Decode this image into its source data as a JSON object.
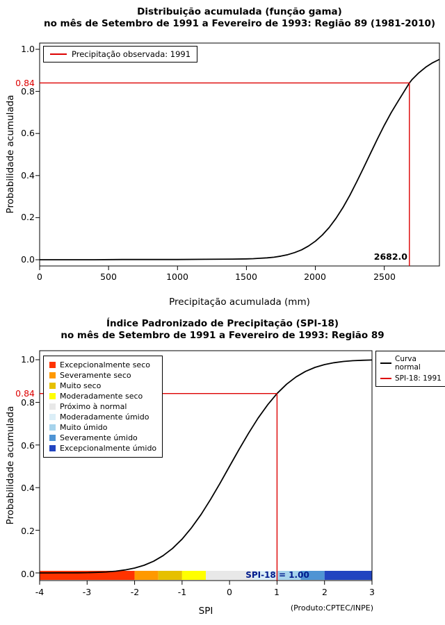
{
  "page": {
    "background": "#ffffff"
  },
  "chart_data": [
    {
      "type": "line",
      "title": "Distribuição acumulada (função gama)",
      "subtitle": "no mês de Setembro de 1991 a Fevereiro de 1993: Região 89 (1981-2010)",
      "xlabel": "Precipitação acumulada (mm)",
      "ylabel": "Probabilidade acumulada",
      "xlim": [
        0,
        2900
      ],
      "ylim": [
        0,
        1
      ],
      "grid": false,
      "legend_position": "top-left",
      "xticks": [
        0,
        500,
        1000,
        1500,
        2000,
        2500
      ],
      "xtick_labels": [
        "0",
        "500",
        "1000",
        "1500",
        "2000",
        "2500"
      ],
      "yticks": [
        0,
        0.2,
        0.4,
        0.6,
        0.8,
        1
      ],
      "ytick_labels": [
        "0.0",
        "0.2",
        "0.4",
        "0.6",
        "0.8",
        "1.0"
      ],
      "legend": {
        "entries": [
          {
            "label": "Precipitação observada: 1991",
            "color": "#dd0000",
            "type": "line"
          }
        ]
      },
      "series": [
        {
          "name": "Distribuição gama acumulada",
          "color": "#000000",
          "x": [
            0,
            200,
            400,
            600,
            800,
            1000,
            1200,
            1400,
            1500,
            1550,
            1600,
            1650,
            1700,
            1750,
            1800,
            1850,
            1900,
            1950,
            2000,
            2050,
            2100,
            2150,
            2200,
            2250,
            2300,
            2350,
            2400,
            2450,
            2500,
            2550,
            2600,
            2650,
            2682,
            2700,
            2750,
            2800,
            2850,
            2900
          ],
          "y": [
            0,
            0,
            0,
            0.001,
            0.001,
            0.001,
            0.002,
            0.003,
            0.004,
            0.005,
            0.007,
            0.009,
            0.012,
            0.017,
            0.024,
            0.034,
            0.047,
            0.065,
            0.088,
            0.117,
            0.153,
            0.197,
            0.248,
            0.306,
            0.37,
            0.437,
            0.506,
            0.574,
            0.639,
            0.699,
            0.753,
            0.806,
            0.84,
            0.855,
            0.888,
            0.915,
            0.936,
            0.952
          ]
        }
      ],
      "marker": {
        "x": 2682,
        "y": 0.84,
        "color": "#dd0000",
        "x_label": "2682.0",
        "y_label": "0.84"
      }
    },
    {
      "type": "line",
      "title": "Índice Padronizado de Precipitação (SPI-18)",
      "subtitle": "no mês de Setembro de 1991 a Fevereiro de 1993: Região 89",
      "xlabel": "SPI",
      "ylabel": "Probabilidade acumulada",
      "xlim": [
        -4,
        3
      ],
      "ylim": [
        0,
        1
      ],
      "grid": false,
      "xticks": [
        -4,
        -3,
        -2,
        -1,
        0,
        1,
        2,
        3
      ],
      "xtick_labels": [
        "-4",
        "-3",
        "-2",
        "-1",
        "0",
        "1",
        "2",
        "3"
      ],
      "yticks": [
        0,
        0.2,
        0.4,
        0.6,
        0.8,
        1
      ],
      "ytick_labels": [
        "0.0",
        "0.2",
        "0.4",
        "0.6",
        "0.8",
        "1.0"
      ],
      "legend_right": {
        "entries": [
          {
            "label": "Curva\nnormal",
            "color": "#000000",
            "type": "line"
          },
          {
            "label": "SPI-18: 1991",
            "color": "#dd0000",
            "type": "line"
          }
        ]
      },
      "category_legend": [
        {
          "label": "Excepcionalmente seco",
          "color": "#ff3300"
        },
        {
          "label": "Severamente seco",
          "color": "#ff9900"
        },
        {
          "label": "Muito seco",
          "color": "#e6c000"
        },
        {
          "label": "Moderadamente seco",
          "color": "#ffff00"
        },
        {
          "label": "Próximo à normal",
          "color": "#e8e8e8"
        },
        {
          "label": "Moderadamente úmido",
          "color": "#dbeef7"
        },
        {
          "label": "Muito úmido",
          "color": "#a6d3ec"
        },
        {
          "label": "Severamente úmido",
          "color": "#4f94d4"
        },
        {
          "label": "Excepcionalmente úmido",
          "color": "#2244c0"
        }
      ],
      "category_bar": [
        {
          "from": -4,
          "to": -2,
          "color": "#ff3300"
        },
        {
          "from": -2,
          "to": -1.5,
          "color": "#ff9900"
        },
        {
          "from": -1.5,
          "to": -1,
          "color": "#e6c000"
        },
        {
          "from": -1,
          "to": -0.5,
          "color": "#ffff00"
        },
        {
          "from": -0.5,
          "to": 0.5,
          "color": "#e8e8e8"
        },
        {
          "from": 0.5,
          "to": 1,
          "color": "#dbeef7"
        },
        {
          "from": 1,
          "to": 1.5,
          "color": "#a6d3ec"
        },
        {
          "from": 1.5,
          "to": 2,
          "color": "#4f94d4"
        },
        {
          "from": 2,
          "to": 3,
          "color": "#2244c0"
        }
      ],
      "series": [
        {
          "name": "Curva normal",
          "color": "#000000",
          "x": [
            -4,
            -3.8,
            -3.6,
            -3.4,
            -3.2,
            -3,
            -2.8,
            -2.6,
            -2.4,
            -2.2,
            -2,
            -1.8,
            -1.6,
            -1.4,
            -1.2,
            -1,
            -0.8,
            -0.6,
            -0.4,
            -0.2,
            0,
            0.2,
            0.4,
            0.6,
            0.8,
            1,
            1.2,
            1.4,
            1.6,
            1.8,
            2,
            2.2,
            2.4,
            2.6,
            2.8,
            3
          ],
          "y": [
            0.0,
            0.0001,
            0.0002,
            0.0003,
            0.0007,
            0.0013,
            0.0026,
            0.0047,
            0.0082,
            0.0139,
            0.0228,
            0.0359,
            0.0548,
            0.0808,
            0.1151,
            0.1587,
            0.2119,
            0.2743,
            0.3446,
            0.4207,
            0.5,
            0.5793,
            0.6554,
            0.7257,
            0.7881,
            0.8413,
            0.8849,
            0.9192,
            0.9452,
            0.9641,
            0.9772,
            0.9861,
            0.9918,
            0.9953,
            0.9974,
            0.9987
          ]
        }
      ],
      "marker": {
        "x": 1,
        "y": 0.8413,
        "color": "#dd0000",
        "y_label": "0.84",
        "bar_label": "SPI-18 = 1.00",
        "bar_label_color": "#001a8c"
      },
      "credit": "(Produto:CPTEC/INPE)"
    }
  ]
}
